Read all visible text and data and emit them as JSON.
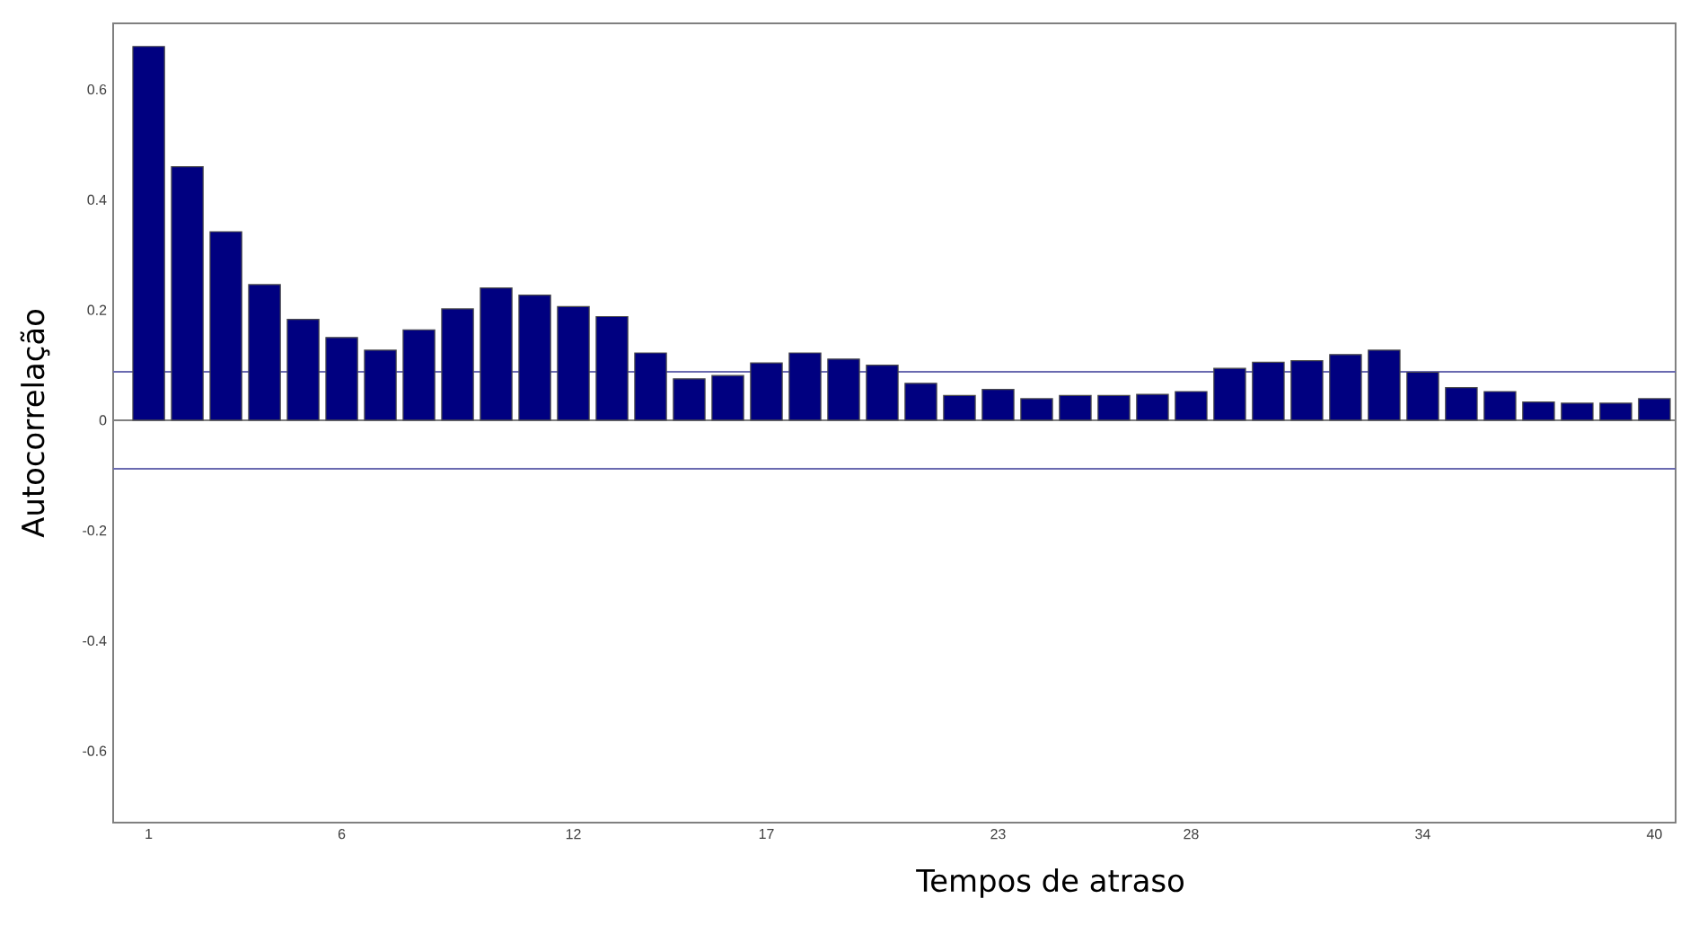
{
  "chart_data": {
    "type": "bar",
    "xlabel": "Tempos de atraso",
    "ylabel": "Autocorrelação",
    "categories": [
      "1",
      null,
      null,
      null,
      null,
      "6",
      null,
      null,
      null,
      null,
      null,
      "12",
      null,
      null,
      null,
      null,
      "17",
      null,
      null,
      null,
      null,
      null,
      "23",
      null,
      null,
      null,
      null,
      "28",
      null,
      null,
      null,
      null,
      null,
      "34",
      null,
      null,
      null,
      null,
      null,
      "40"
    ],
    "values": [
      0.678,
      0.46,
      0.342,
      0.246,
      0.183,
      0.15,
      0.127,
      0.164,
      0.202,
      0.24,
      0.227,
      0.206,
      0.188,
      0.122,
      0.075,
      0.081,
      0.104,
      0.122,
      0.111,
      0.1,
      0.067,
      0.045,
      0.056,
      0.039,
      0.045,
      0.045,
      0.047,
      0.052,
      0.094,
      0.105,
      0.108,
      0.119,
      0.127,
      0.087,
      0.059,
      0.052,
      0.033,
      0.031,
      0.031,
      0.039
    ],
    "color": "#000080",
    "ylim": [
      -0.73,
      0.72
    ],
    "yticks": [
      -0.6,
      -0.4,
      -0.2,
      0,
      0.2,
      0.4,
      0.6
    ],
    "ref_lines": [
      {
        "axis": "y",
        "value": 0,
        "color": "#808080"
      },
      {
        "axis": "y",
        "value": 0.088,
        "color": "#6a6ab0"
      },
      {
        "axis": "y",
        "value": -0.088,
        "color": "#6a6ab0"
      }
    ],
    "grid": false
  }
}
